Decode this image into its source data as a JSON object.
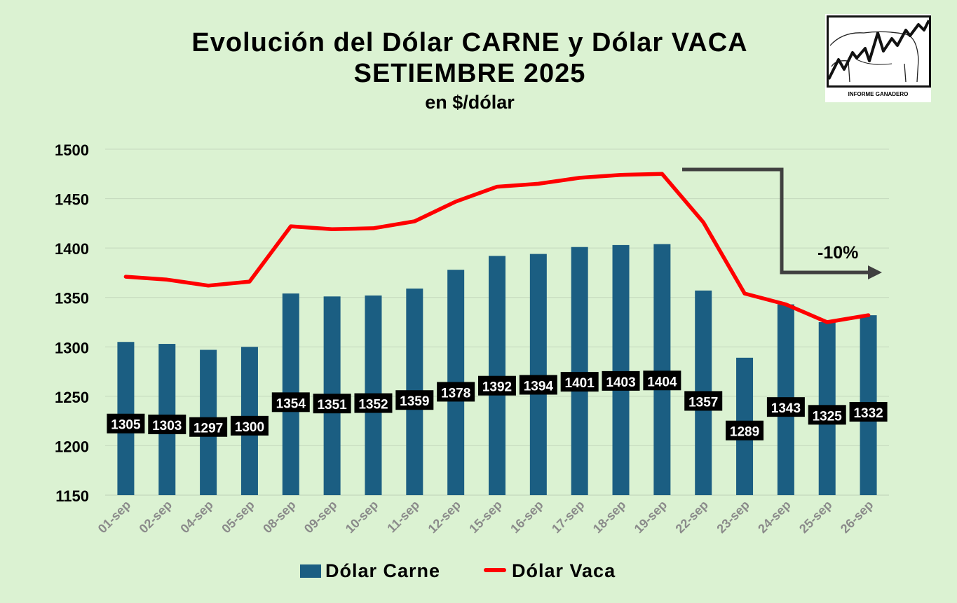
{
  "title_line1": "Evolución del Dólar CARNE y Dólar VACA",
  "title_line2": "SETIEMBRE 2025",
  "title_line3": "en $/dólar",
  "logo": {
    "caption": "INFORME GANADERO"
  },
  "annotation": {
    "label": "-10%"
  },
  "colors": {
    "background": "#dbf2d2",
    "bar": "#1b5e82",
    "line": "#ff0000",
    "label_box": "#000000",
    "arrow": "#404040"
  },
  "chart_data": {
    "type": "bar",
    "categories": [
      "01-sep",
      "02-sep",
      "04-sep",
      "05-sep",
      "08-sep",
      "09-sep",
      "10-sep",
      "11-sep",
      "12-sep",
      "15-sep",
      "16-sep",
      "17-sep",
      "18-sep",
      "19-sep",
      "22-sep",
      "23-sep",
      "24-sep",
      "25-sep",
      "26-sep"
    ],
    "series": [
      {
        "name": "Dólar Carne",
        "type": "bar",
        "values": [
          1305,
          1303,
          1297,
          1300,
          1354,
          1351,
          1352,
          1359,
          1378,
          1392,
          1394,
          1401,
          1403,
          1404,
          1357,
          1289,
          1343,
          1325,
          1332
        ]
      },
      {
        "name": "Dólar  Vaca",
        "type": "line",
        "values": [
          1371,
          1368,
          1362,
          1366,
          1422,
          1419,
          1420,
          1427,
          1447,
          1462,
          1465,
          1471,
          1474,
          1475,
          1426,
          1354,
          1343,
          1325,
          1332
        ]
      }
    ],
    "ylim": [
      1150,
      1500
    ],
    "yticks": [
      "1500",
      "1450",
      "1400",
      "1350",
      "1300",
      "1250",
      "1200",
      "1150"
    ],
    "grid": true,
    "legend": "bottom"
  }
}
